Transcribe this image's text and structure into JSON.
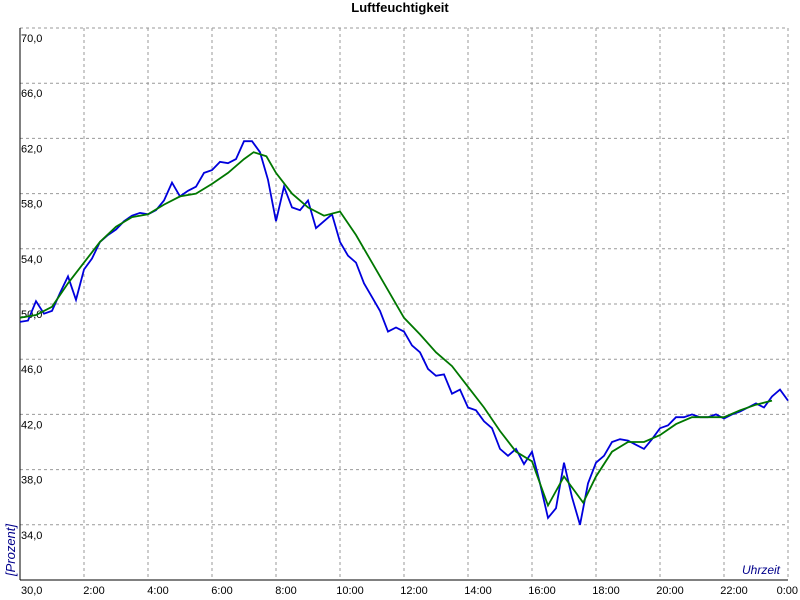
{
  "chart_data": {
    "type": "line",
    "title": "Luftfeuchtigkeit",
    "y_label": "[Prozent]",
    "x_label": "Uhrzeit",
    "xlim": [
      0,
      24
    ],
    "ylim": [
      30,
      70
    ],
    "grid": true,
    "xticks": [
      {
        "value": 2,
        "label": "2:00"
      },
      {
        "value": 4,
        "label": "4:00"
      },
      {
        "value": 6,
        "label": "6:00"
      },
      {
        "value": 8,
        "label": "8:00"
      },
      {
        "value": 10,
        "label": "10:00"
      },
      {
        "value": 12,
        "label": "12:00"
      },
      {
        "value": 14,
        "label": "14:00"
      },
      {
        "value": 16,
        "label": "16:00"
      },
      {
        "value": 18,
        "label": "18:00"
      },
      {
        "value": 20,
        "label": "20:00"
      },
      {
        "value": 22,
        "label": "22:00"
      },
      {
        "value": 24,
        "label": "0:00"
      }
    ],
    "yticks": [
      {
        "value": 30,
        "label": "30,0"
      },
      {
        "value": 34,
        "label": "34,0"
      },
      {
        "value": 38,
        "label": "38,0"
      },
      {
        "value": 42,
        "label": "42,0"
      },
      {
        "value": 46,
        "label": "46,0"
      },
      {
        "value": 50,
        "label": "50,0"
      },
      {
        "value": 54,
        "label": "54,0"
      },
      {
        "value": 58,
        "label": "58,0"
      },
      {
        "value": 62,
        "label": "62,0"
      },
      {
        "value": 66,
        "label": "66,0"
      },
      {
        "value": 70,
        "label": "70,0"
      }
    ],
    "series": [
      {
        "color": "#0000dd",
        "x": [
          0,
          0.25,
          0.5,
          0.75,
          1,
          1.25,
          1.5,
          1.75,
          2,
          2.25,
          2.5,
          2.75,
          3,
          3.25,
          3.5,
          3.75,
          4,
          4.25,
          4.5,
          4.75,
          5,
          5.25,
          5.5,
          5.75,
          6,
          6.25,
          6.5,
          6.75,
          7,
          7.25,
          7.5,
          7.75,
          8,
          8.25,
          8.5,
          8.75,
          9,
          9.25,
          9.5,
          9.75,
          10,
          10.25,
          10.5,
          10.75,
          11,
          11.25,
          11.5,
          11.75,
          12,
          12.25,
          12.5,
          12.75,
          13,
          13.25,
          13.5,
          13.75,
          14,
          14.25,
          14.5,
          14.75,
          15,
          15.25,
          15.5,
          15.75,
          16,
          16.25,
          16.5,
          16.75,
          17,
          17.25,
          17.5,
          17.75,
          18,
          18.25,
          18.5,
          18.75,
          19,
          19.25,
          19.5,
          19.75,
          20,
          20.25,
          20.5,
          20.75,
          21,
          21.25,
          21.5,
          21.75,
          22,
          22.25,
          22.5,
          22.75,
          23,
          23.25,
          23.5,
          23.75,
          24
        ],
        "values": [
          48.7,
          48.8,
          50.2,
          49.3,
          49.5,
          50.8,
          52,
          50.3,
          52.5,
          53.3,
          54.5,
          55,
          55.4,
          56,
          56.4,
          56.6,
          56.5,
          56.8,
          57.5,
          58.8,
          57.8,
          58.2,
          58.5,
          59.5,
          59.7,
          60.3,
          60.2,
          60.5,
          61.8,
          61.8,
          61,
          59,
          56,
          58.5,
          57,
          56.8,
          57.5,
          55.5,
          56,
          56.5,
          54.5,
          53.5,
          53,
          51.5,
          50.5,
          49.5,
          48,
          48.3,
          48,
          47,
          46.5,
          45.3,
          44.8,
          44.9,
          43.5,
          43.8,
          42.5,
          42.3,
          41.5,
          41,
          39.5,
          39,
          39.5,
          38.4,
          39.3,
          37,
          34.5,
          35.2,
          38.5,
          36,
          34,
          37,
          38.5,
          39,
          40,
          40.2,
          40.1,
          39.8,
          39.5,
          40.2,
          41,
          41.2,
          41.8,
          41.8,
          42,
          41.8,
          41.8,
          42,
          41.7,
          42,
          42.2,
          42.5,
          42.8,
          42.5,
          43.3,
          43.8,
          43
        ]
      },
      {
        "color": "#007700",
        "x": [
          0,
          0.5,
          1,
          1.5,
          2,
          2.5,
          3,
          3.5,
          4,
          4.5,
          5,
          5.5,
          6,
          6.5,
          7,
          7.3,
          7.7,
          8,
          8.5,
          9,
          9.5,
          10,
          10.5,
          11,
          11.5,
          12,
          12.5,
          13,
          13.5,
          14,
          14.5,
          15,
          15.5,
          16,
          16.5,
          17,
          17.6,
          18,
          18.5,
          19,
          19.5,
          20,
          20.5,
          21,
          22,
          22.5,
          23,
          23.5
        ],
        "values": [
          49,
          49.2,
          49.8,
          51.5,
          53,
          54.5,
          55.6,
          56.3,
          56.5,
          57.2,
          57.8,
          58,
          58.7,
          59.5,
          60.5,
          61,
          60.7,
          59.5,
          58,
          57,
          56.4,
          56.7,
          55,
          53,
          51,
          49,
          47.8,
          46.5,
          45.5,
          44,
          42.5,
          40.8,
          39.3,
          38.6,
          35.4,
          37.5,
          35.6,
          37.5,
          39.3,
          40,
          40,
          40.5,
          41.3,
          41.8,
          41.8,
          42.3,
          42.7,
          43
        ]
      }
    ]
  }
}
